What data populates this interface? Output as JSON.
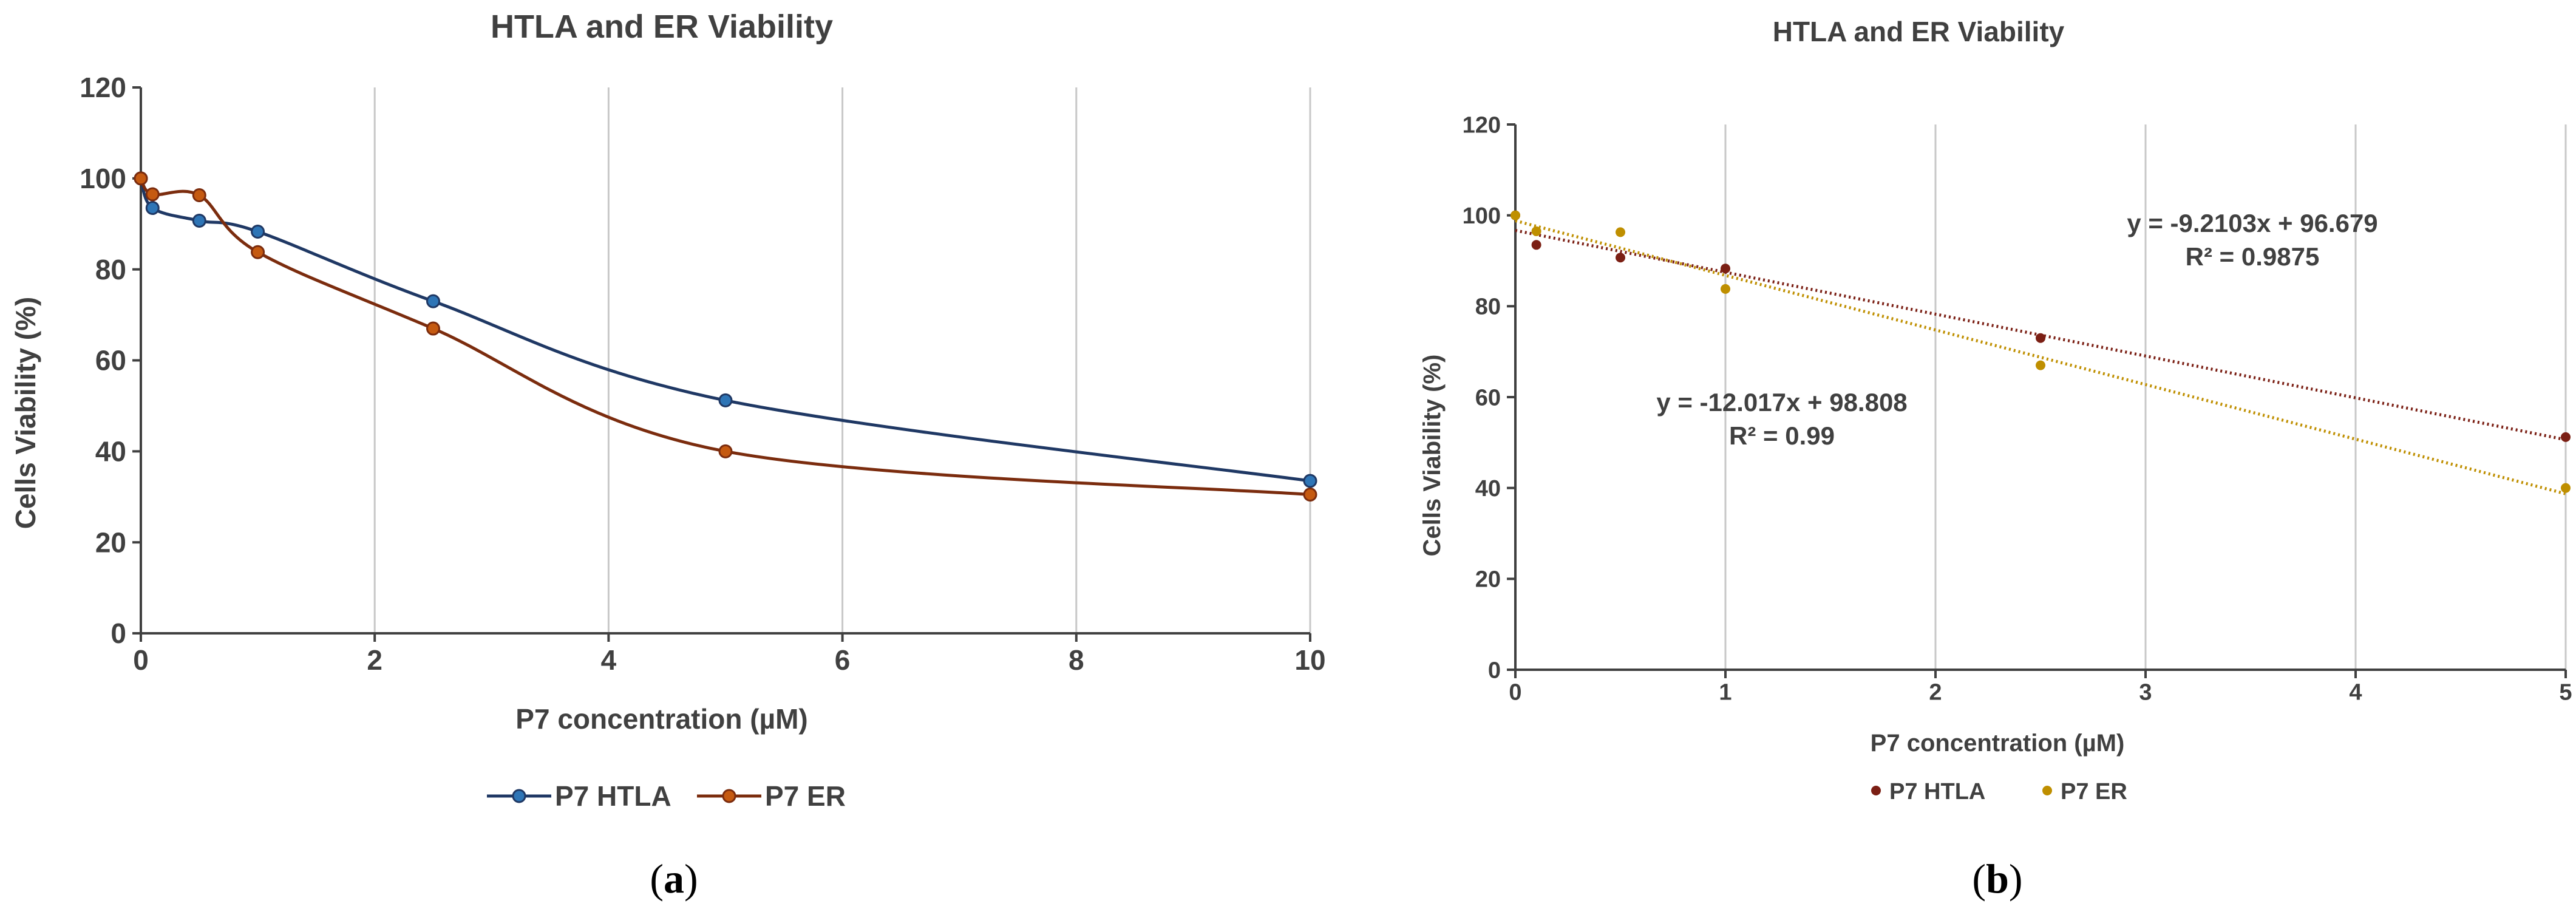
{
  "colors": {
    "htla_line": "#1f3864",
    "htla_marker": "#2e75b6",
    "er_line": "#7b2c0e",
    "er_marker": "#c55a11",
    "htla_trend": "#7b1f14",
    "er_trend": "#bf8f00",
    "text": "#404040",
    "grid": "#c8c8c8",
    "axis": "#404040"
  },
  "chart_data": [
    {
      "type": "line",
      "smooth": true,
      "title": "HTLA and ER Viability",
      "xlabel": "P7 concentration (µM)",
      "ylabel": "Cells Viability (%)",
      "xlim": [
        0,
        10
      ],
      "ylim": [
        0,
        120
      ],
      "xticks": [
        0,
        2,
        4,
        6,
        8,
        10
      ],
      "yticks": [
        0,
        20,
        40,
        60,
        80,
        100,
        120
      ],
      "grid": "vertical",
      "legend_position": "bottom",
      "caption": "a",
      "series": [
        {
          "name": "P7 HTLA",
          "color_key": "htla",
          "x": [
            0,
            0.1,
            0.5,
            1,
            2.5,
            5,
            10
          ],
          "values": [
            100,
            93.5,
            90.7,
            88.3,
            73,
            51.2,
            33.5
          ]
        },
        {
          "name": "P7 ER",
          "color_key": "er",
          "x": [
            0,
            0.1,
            0.5,
            1,
            2.5,
            5,
            10
          ],
          "values": [
            100,
            96.5,
            96.3,
            83.8,
            67,
            40,
            30.5
          ]
        }
      ]
    },
    {
      "type": "scatter",
      "title": "HTLA and ER Viability",
      "xlabel": "P7 concentration (µM)",
      "ylabel": "Cells Viability (%)",
      "xlim": [
        0,
        5
      ],
      "ylim": [
        0,
        120
      ],
      "xticks": [
        0,
        1,
        2,
        3,
        4,
        5
      ],
      "yticks": [
        0,
        20,
        40,
        60,
        80,
        100,
        120
      ],
      "grid": "vertical",
      "legend_position": "bottom",
      "caption": "b",
      "series": [
        {
          "name": "P7 HTLA",
          "color_key": "htla_trend",
          "x": [
            0,
            0.1,
            0.5,
            1,
            2.5,
            5
          ],
          "values": [
            100,
            93.5,
            90.7,
            88.3,
            73,
            51.2
          ],
          "trendline": {
            "slope": -9.2103,
            "intercept": 96.679,
            "r2": 0.9875
          },
          "equation_label": "y = -9.2103x + 96.679",
          "r2_label": "R² = 0.9875"
        },
        {
          "name": "P7 ER",
          "color_key": "er_trend",
          "x": [
            0,
            0.1,
            0.5,
            1,
            2.5,
            5
          ],
          "values": [
            100,
            96.5,
            96.3,
            83.8,
            67,
            40
          ],
          "trendline": {
            "slope": -12.017,
            "intercept": 98.808,
            "r2": 0.99
          },
          "equation_label": "y = -12.017x + 98.808",
          "r2_label": "R² = 0.99"
        }
      ]
    }
  ]
}
